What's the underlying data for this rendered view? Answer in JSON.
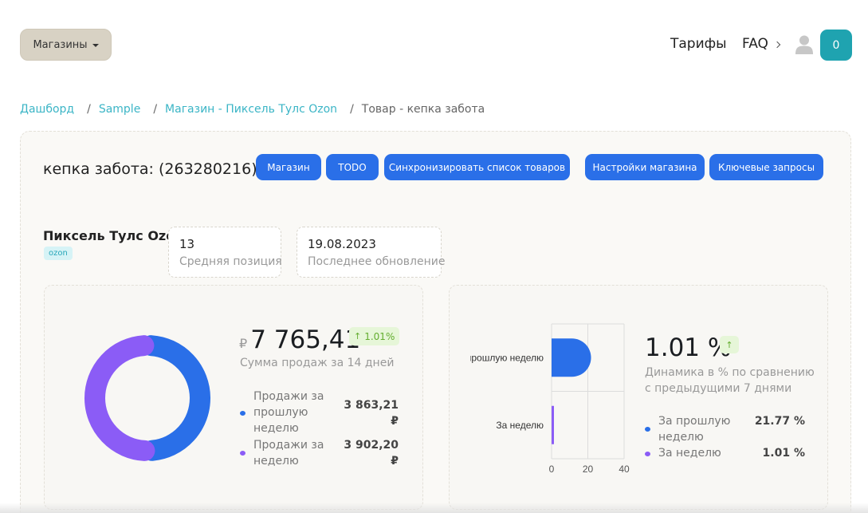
{
  "header": {
    "stores_label": "Магазины",
    "tarify_label": "Тарифы",
    "faq_label": "FAQ",
    "cart_count": "0"
  },
  "breadcrumb": {
    "dashboard": "Дашборд",
    "sample": "Sample",
    "store": "Магазин - Пиксель Тулс Ozon",
    "current": "Товар - кепка забота",
    "separator": "/"
  },
  "product": {
    "title": "кепка забота:  (263280216)"
  },
  "actions": {
    "store": "Магазин",
    "todo": "TODO",
    "sync": "Синхронизировать список товаров",
    "settings": "Настройки магазина",
    "keywords": "Ключевые запросы"
  },
  "store_info": {
    "name": "Пиксель Тулс Ozon",
    "tag": "ozon",
    "avg_position_value": "13",
    "avg_position_label": "Средняя позиция",
    "last_update_value": "19.08.2023",
    "last_update_label": "Последнее обновление"
  },
  "sales": {
    "currency": "₽",
    "total": "7 765,41",
    "change": "1.01%",
    "caption": "Сумма продаж за 14 дней",
    "items": [
      {
        "label": "Продажи за прошлую неделю",
        "value": "3 863,21 ₽",
        "color": "#2a6fe8",
        "amount": 3863.21
      },
      {
        "label": "Продажи за неделю",
        "value": "3 902,20 ₽",
        "color": "#8b5cf6",
        "amount": 3902.2
      }
    ]
  },
  "dynamics": {
    "value": "1.01 %",
    "caption": "Динамика в % по сравнению с предыдущими 7 днями",
    "items": [
      {
        "label": "За прошлую неделю",
        "value": "21.77 %",
        "color": "#2a6fe8"
      },
      {
        "label": "За неделю",
        "value": "1.01 %",
        "color": "#8b5cf6"
      }
    ]
  },
  "chart_data": {
    "type": "bar",
    "orientation": "horizontal",
    "categories": [
      "прошлую неделю",
      "За неделю"
    ],
    "values": [
      21.77,
      1.01
    ],
    "colors": [
      "#2a6fe8",
      "#8b5cf6"
    ],
    "xlim": [
      0,
      40
    ],
    "xticks": [
      "0",
      "20",
      "40"
    ],
    "grid": true
  }
}
